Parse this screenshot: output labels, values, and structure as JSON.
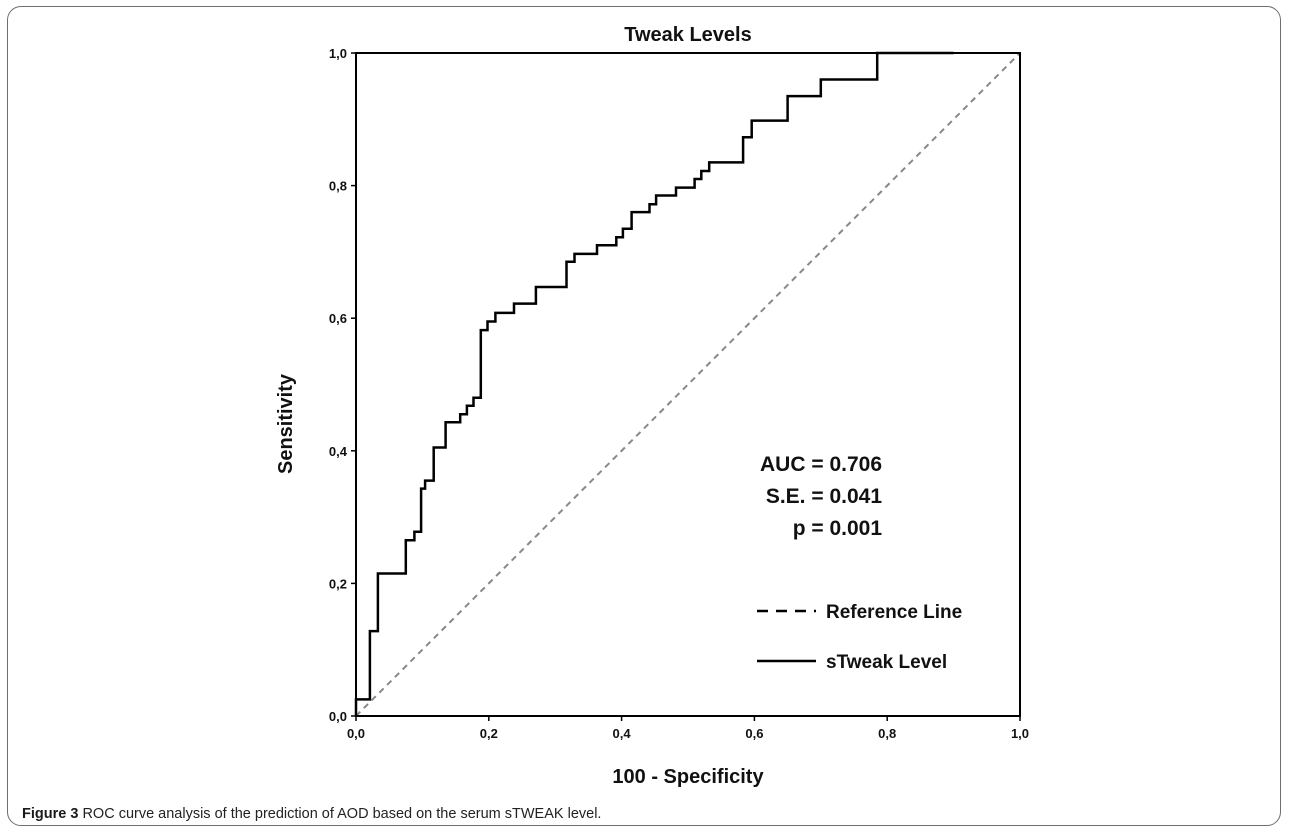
{
  "caption": {
    "label": "Figure 3",
    "text": "ROC curve analysis of the prediction of AOD based on the serum sTWEAK level."
  },
  "chart_data": {
    "type": "line",
    "title": "Tweak Levels",
    "xlabel": "100 - Specificity",
    "ylabel": "Sensitivity",
    "xlim": [
      0,
      1
    ],
    "ylim": [
      0,
      1
    ],
    "x_ticks": [
      "0,0",
      "0,2",
      "0,4",
      "0,6",
      "0,8",
      "1,0"
    ],
    "y_ticks": [
      "0,0",
      "0,2",
      "0,4",
      "0,6",
      "0,8",
      "1,0"
    ],
    "grid": false,
    "legend_position": "bottom-right",
    "colors": {
      "curve": "#000000",
      "reference": "#888888"
    },
    "series": [
      {
        "name": "Reference Line",
        "style": "dashed",
        "x": [
          0,
          1
        ],
        "y": [
          0,
          1
        ]
      },
      {
        "name": "sTweak Level",
        "style": "solid",
        "x": [
          0.0,
          0.0,
          0.021,
          0.021,
          0.033,
          0.033,
          0.042,
          0.042,
          0.075,
          0.075,
          0.088,
          0.088,
          0.098,
          0.098,
          0.104,
          0.104,
          0.117,
          0.117,
          0.135,
          0.135,
          0.157,
          0.157,
          0.167,
          0.167,
          0.177,
          0.177,
          0.188,
          0.188,
          0.198,
          0.198,
          0.21,
          0.21,
          0.238,
          0.238,
          0.271,
          0.271,
          0.317,
          0.317,
          0.329,
          0.329,
          0.363,
          0.363,
          0.392,
          0.392,
          0.402,
          0.402,
          0.415,
          0.415,
          0.442,
          0.442,
          0.452,
          0.452,
          0.482,
          0.482,
          0.51,
          0.51,
          0.52,
          0.52,
          0.532,
          0.532,
          0.583,
          0.583,
          0.596,
          0.596,
          0.65,
          0.65,
          0.7,
          0.7,
          0.785,
          0.785,
          0.883,
          0.883,
          0.9,
          0.9
        ],
        "y": [
          0.0,
          0.025,
          0.025,
          0.128,
          0.128,
          0.215,
          0.215,
          0.215,
          0.215,
          0.265,
          0.265,
          0.278,
          0.278,
          0.343,
          0.343,
          0.355,
          0.355,
          0.405,
          0.405,
          0.443,
          0.443,
          0.455,
          0.455,
          0.468,
          0.468,
          0.48,
          0.48,
          0.582,
          0.582,
          0.595,
          0.595,
          0.608,
          0.608,
          0.622,
          0.622,
          0.647,
          0.647,
          0.685,
          0.685,
          0.697,
          0.697,
          0.71,
          0.71,
          0.722,
          0.722,
          0.735,
          0.735,
          0.76,
          0.76,
          0.772,
          0.772,
          0.785,
          0.785,
          0.797,
          0.797,
          0.81,
          0.81,
          0.822,
          0.822,
          0.835,
          0.835,
          0.873,
          0.873,
          0.898,
          0.898,
          0.935,
          0.935,
          0.96,
          0.96,
          1.0,
          1.0,
          1.0,
          1.0,
          1.0
        ]
      }
    ],
    "annotations": [
      "AUC = 0.706",
      "S.E. = 0.041",
      "p = 0.001"
    ]
  }
}
